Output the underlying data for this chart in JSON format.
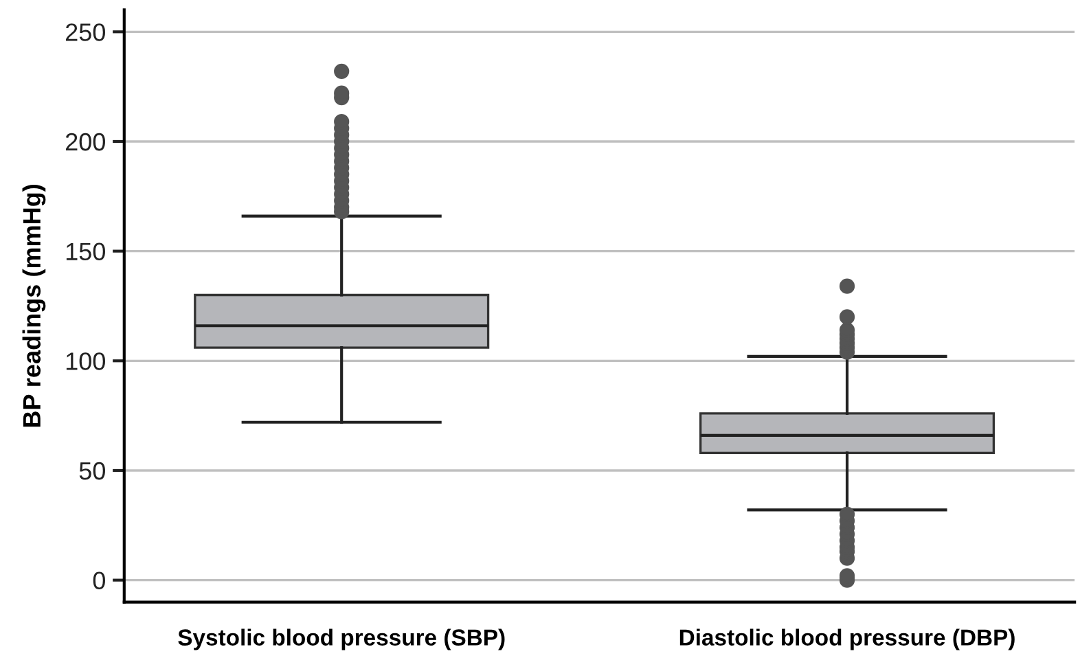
{
  "chart_data": {
    "type": "box",
    "ylabel": "BP readings (mmHg)",
    "categories": [
      "Systolic blood pressure (SBP)",
      "Diastolic blood pressure (DBP)"
    ],
    "boxes": [
      {
        "low": 72,
        "q1": 106,
        "median": 116,
        "q3": 130,
        "high": 166,
        "outliers": [
          168,
          170,
          173,
          176,
          179,
          182,
          185,
          188,
          191,
          194,
          197,
          200,
          203,
          206,
          209,
          220,
          222,
          232
        ]
      },
      {
        "low": 32,
        "q1": 58,
        "median": 66,
        "q3": 76,
        "high": 102,
        "outliers": [
          0,
          1,
          2,
          10,
          13,
          15,
          18,
          21,
          24,
          27,
          30,
          104,
          106,
          108,
          110,
          112,
          114,
          120,
          134
        ]
      }
    ],
    "color": "#b5b6ba",
    "ylim": [
      -10,
      260
    ],
    "yticks": [
      0,
      50,
      100,
      150,
      200,
      250
    ],
    "grid": "y"
  }
}
